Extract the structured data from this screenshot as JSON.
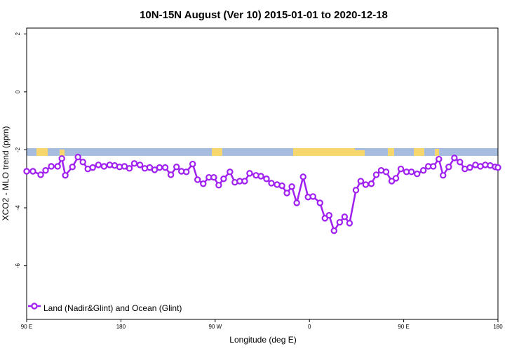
{
  "chart_data": {
    "type": "line",
    "title": "10N-15N August (Ver 10)   2015-01-01 to 2020-12-18",
    "x_label": "Longitude (deg E)",
    "y_label": "XCO2 - MLO trend (ppm)",
    "xlim": [
      90,
      540
    ],
    "ylim": [
      -7.85,
      2.2
    ],
    "xticks": [
      {
        "value": 90,
        "label": "90 E"
      },
      {
        "value": 180,
        "label": "180"
      },
      {
        "value": 270,
        "label": "90 W"
      },
      {
        "value": 360,
        "label": "0"
      },
      {
        "value": 450,
        "label": "90 E"
      },
      {
        "value": 540,
        "label": "180"
      }
    ],
    "yticks": [
      2,
      0,
      -2,
      -4,
      -6
    ],
    "legend": "bottom-left",
    "series": [
      {
        "name": "Land (Nadir&Glint) and Ocean (Glint)",
        "color": "#a020f0",
        "x": [
          90,
          96.0,
          103.4,
          108.1,
          113.5,
          119.6,
          123.6,
          126.9,
          133.7,
          139.0,
          143.7,
          148.4,
          153.1,
          158.5,
          163.9,
          169.3,
          174.0,
          178.7,
          183.4,
          188.1,
          192.8,
          198.2,
          202.8,
          207.5,
          212.2,
          216.9,
          222.3,
          227.7,
          233.1,
          237.8,
          242.5,
          248.5,
          253.2,
          258.6,
          264.0,
          268.7,
          273.4,
          278.1,
          284.1,
          288.8,
          293.5,
          298.2,
          302.9,
          309.0,
          313.7,
          319.0,
          323.7,
          329.1,
          333.8,
          338.5,
          343.2,
          347.9,
          354.0,
          358.7,
          363.4,
          370.1,
          374.8,
          378.8,
          383.5,
          388.9,
          393.6,
          398.3,
          404.4,
          409.0,
          413.7,
          419.1,
          423.8,
          428.5,
          433.2,
          438.6,
          442.6,
          447.3,
          452.7,
          457.4,
          462.8,
          468.8,
          473.5,
          478.2,
          483.6,
          487.6,
          493.0,
          498.4,
          503.7,
          508.4,
          513.2,
          518.5,
          523.2,
          527.9,
          532.6,
          537.3,
          540
        ],
        "values": [
          -2.74,
          -2.74,
          -2.86,
          -2.71,
          -2.57,
          -2.57,
          -2.3,
          -2.88,
          -2.59,
          -2.25,
          -2.42,
          -2.66,
          -2.61,
          -2.52,
          -2.57,
          -2.52,
          -2.54,
          -2.59,
          -2.57,
          -2.64,
          -2.47,
          -2.52,
          -2.64,
          -2.61,
          -2.69,
          -2.61,
          -2.61,
          -2.86,
          -2.59,
          -2.74,
          -2.76,
          -2.49,
          -3.03,
          -3.17,
          -2.95,
          -2.95,
          -3.22,
          -3.0,
          -2.76,
          -3.12,
          -3.08,
          -3.08,
          -2.81,
          -2.88,
          -2.91,
          -3.0,
          -3.15,
          -3.2,
          -3.24,
          -3.49,
          -3.27,
          -3.83,
          -2.93,
          -3.63,
          -3.61,
          -3.83,
          -4.36,
          -4.26,
          -4.79,
          -4.5,
          -4.31,
          -4.53,
          -3.39,
          -3.08,
          -3.2,
          -3.17,
          -2.86,
          -2.71,
          -2.76,
          -3.08,
          -2.98,
          -2.66,
          -2.76,
          -2.76,
          -2.83,
          -2.71,
          -2.57,
          -2.57,
          -2.32,
          -2.88,
          -2.59,
          -2.28,
          -2.42,
          -2.66,
          -2.61,
          -2.52,
          -2.57,
          -2.52,
          -2.54,
          -2.59,
          -2.61
        ]
      }
    ]
  }
}
